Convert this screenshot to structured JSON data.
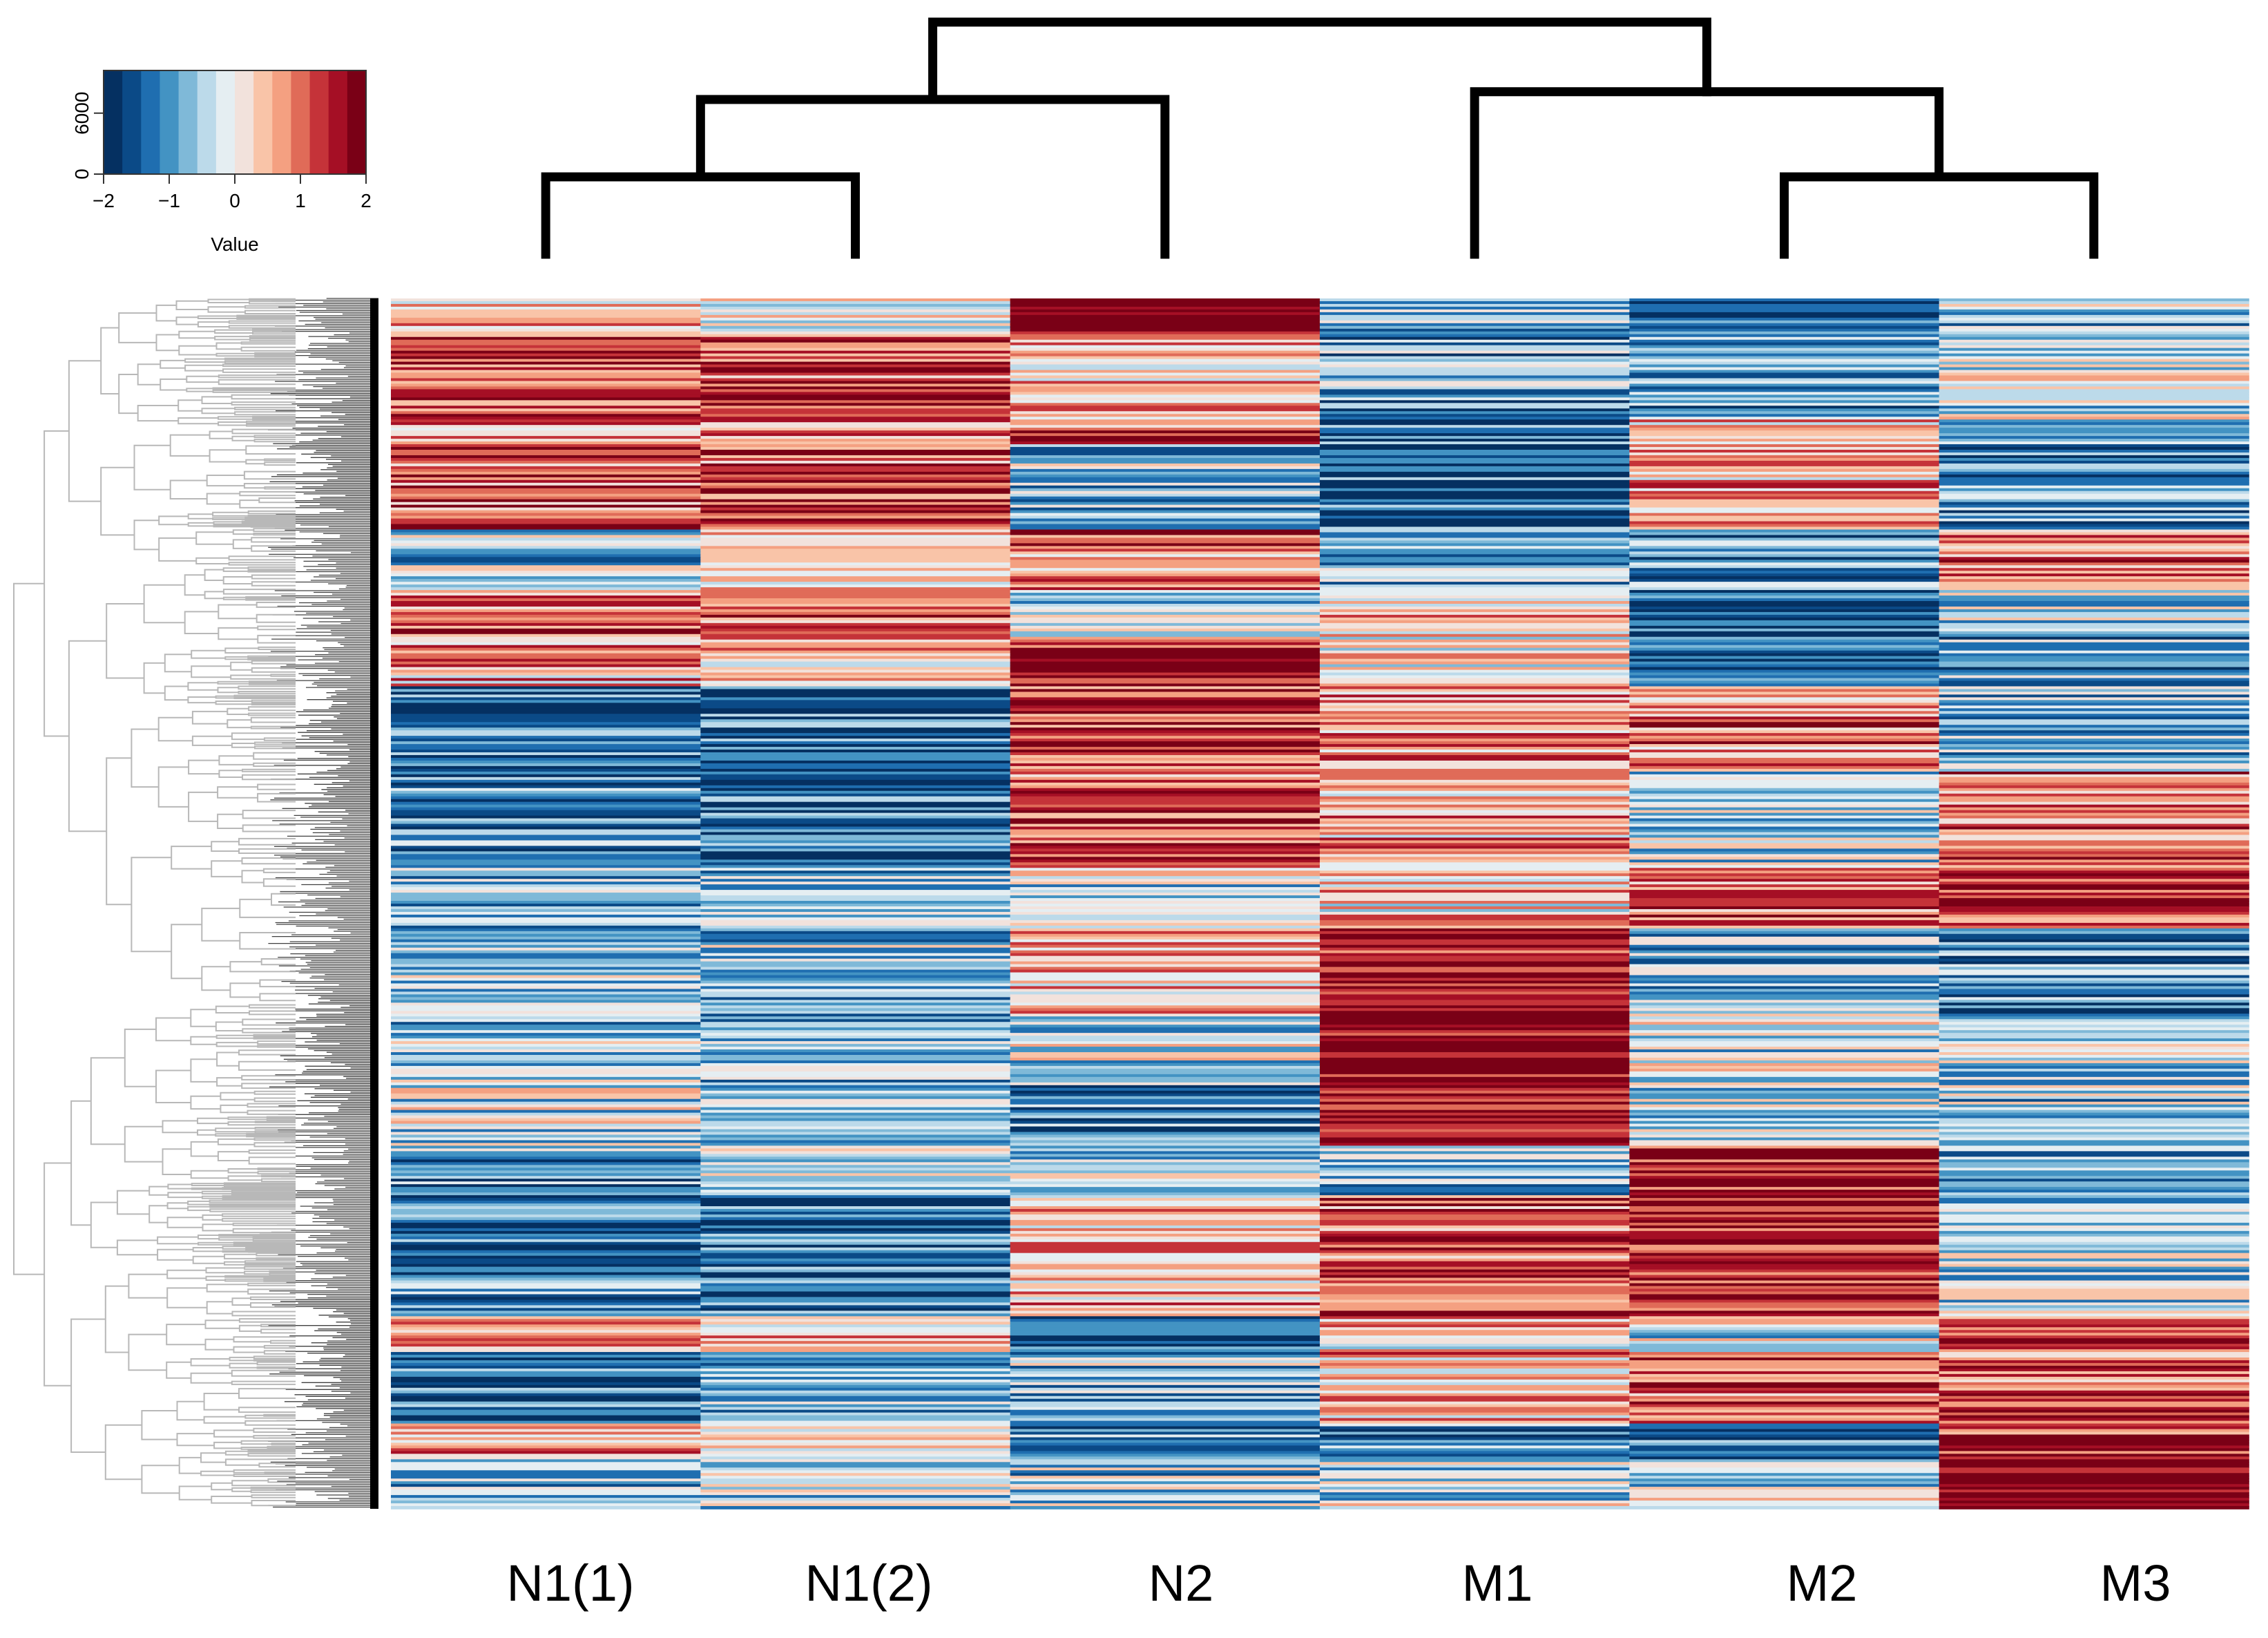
{
  "chart_data": {
    "type": "heatmap",
    "title": "",
    "columns": [
      "N1(1)",
      "N1(2)",
      "N2",
      "M1",
      "M2",
      "M3"
    ],
    "rows": "genes (unlabelled, several thousand rows clustered by row dendrogram)",
    "value_range": [
      -2,
      2
    ],
    "colorscale": [
      "#053061",
      "#0b4a87",
      "#1f6eb0",
      "#4393c3",
      "#7fb9d8",
      "#bcdaea",
      "#e5eef2",
      "#f2e2dc",
      "#f9c4a8",
      "#f4a081",
      "#e06b58",
      "#c53339",
      "#a50f25",
      "#7a0016"
    ],
    "color_key": {
      "title": "Value",
      "x_ticks": [
        "−2",
        "−1",
        "0",
        "1",
        "2"
      ],
      "x_tick_values": [
        -2,
        -1,
        0,
        1,
        2
      ],
      "y_ticks": [
        "0",
        "6000"
      ],
      "y_tick_values": [
        0,
        6000
      ]
    },
    "column_dendrogram": {
      "merges": [
        {
          "members": [
            "N1(1)",
            "N1(2)"
          ],
          "height": 1.0
        },
        {
          "members": [
            "M2",
            "M3"
          ],
          "height": 1.0
        },
        {
          "members": [
            "N1(1)",
            "N1(2)",
            "N2"
          ],
          "height": 2.0
        },
        {
          "members": [
            "M1",
            "M2",
            "M3"
          ],
          "height": 2.1
        },
        {
          "members": [
            "N1(1)",
            "N1(2)",
            "N2",
            "M1",
            "M2",
            "M3"
          ],
          "height": 3.0
        }
      ]
    },
    "row_blocks": [
      {
        "from": 0.0,
        "to": 0.03,
        "values": [
          0.2,
          -0.1,
          2.0,
          -0.6,
          -1.5,
          -0.5
        ]
      },
      {
        "from": 0.03,
        "to": 0.1,
        "values": [
          1.2,
          1.2,
          0.4,
          -0.8,
          -0.9,
          -0.3
        ]
      },
      {
        "from": 0.1,
        "to": 0.12,
        "values": [
          0.9,
          1.0,
          1.1,
          -1.3,
          0.3,
          -0.6
        ]
      },
      {
        "from": 0.12,
        "to": 0.19,
        "values": [
          1.1,
          1.2,
          -0.6,
          -1.5,
          0.6,
          -1.0
        ]
      },
      {
        "from": 0.19,
        "to": 0.24,
        "values": [
          -0.5,
          0.2,
          0.8,
          -0.8,
          -1.0,
          1.0
        ]
      },
      {
        "from": 0.24,
        "to": 0.28,
        "values": [
          1.0,
          1.1,
          -0.4,
          0.4,
          -1.6,
          -0.4
        ]
      },
      {
        "from": 0.28,
        "to": 0.32,
        "values": [
          0.6,
          0.3,
          1.4,
          0.2,
          -1.4,
          -0.8
        ]
      },
      {
        "from": 0.32,
        "to": 0.39,
        "values": [
          -1.3,
          -1.5,
          1.3,
          0.7,
          0.9,
          -0.7
        ]
      },
      {
        "from": 0.39,
        "to": 0.47,
        "values": [
          -1.2,
          -1.4,
          1.1,
          0.6,
          -0.4,
          0.9
        ]
      },
      {
        "from": 0.47,
        "to": 0.52,
        "values": [
          -0.8,
          -0.6,
          -0.4,
          0.3,
          1.0,
          1.3
        ]
      },
      {
        "from": 0.52,
        "to": 0.59,
        "values": [
          -0.6,
          -0.5,
          0.5,
          1.7,
          -0.7,
          -1.0
        ]
      },
      {
        "from": 0.59,
        "to": 0.65,
        "values": [
          -0.5,
          -0.7,
          -0.3,
          2.0,
          -0.3,
          -0.5
        ]
      },
      {
        "from": 0.65,
        "to": 0.7,
        "values": [
          -0.4,
          -0.6,
          -1.2,
          1.8,
          -0.4,
          -0.6
        ]
      },
      {
        "from": 0.7,
        "to": 0.74,
        "values": [
          -0.8,
          -0.4,
          -0.5,
          -0.6,
          1.6,
          -0.8
        ]
      },
      {
        "from": 0.74,
        "to": 0.84,
        "values": [
          -1.2,
          -1.3,
          0.5,
          1.2,
          1.5,
          -0.4
        ]
      },
      {
        "from": 0.84,
        "to": 0.87,
        "values": [
          0.9,
          0.7,
          -1.6,
          0.3,
          -0.3,
          1.1
        ]
      },
      {
        "from": 0.87,
        "to": 0.93,
        "values": [
          -1.3,
          -0.9,
          -0.6,
          0.5,
          1.2,
          1.0
        ]
      },
      {
        "from": 0.93,
        "to": 0.96,
        "values": [
          0.7,
          0.4,
          -1.0,
          -0.9,
          -1.0,
          1.4
        ]
      },
      {
        "from": 0.96,
        "to": 1.0,
        "values": [
          -0.7,
          -0.3,
          -0.5,
          -0.4,
          -0.2,
          1.9
        ]
      }
    ]
  }
}
